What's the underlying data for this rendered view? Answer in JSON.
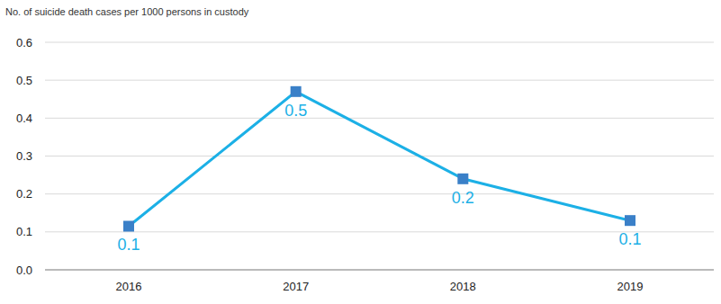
{
  "chart_data": {
    "type": "line",
    "y_label": "No. of suicide death cases per 1000 persons in custody",
    "categories": [
      "2016",
      "2017",
      "2018",
      "2019"
    ],
    "values": [
      0.115,
      0.47,
      0.24,
      0.13
    ],
    "value_labels": [
      "0.1",
      "0.5",
      "0.2",
      "0.1"
    ],
    "data_labels": true,
    "color": "#1cb0e6",
    "marker": "square",
    "ylim": [
      0,
      0.6
    ],
    "yticks": [
      {
        "value": 0,
        "label": "0.0"
      },
      0.1,
      0.2,
      0.3,
      0.4,
      0.5,
      0.6
    ],
    "grid": true
  }
}
